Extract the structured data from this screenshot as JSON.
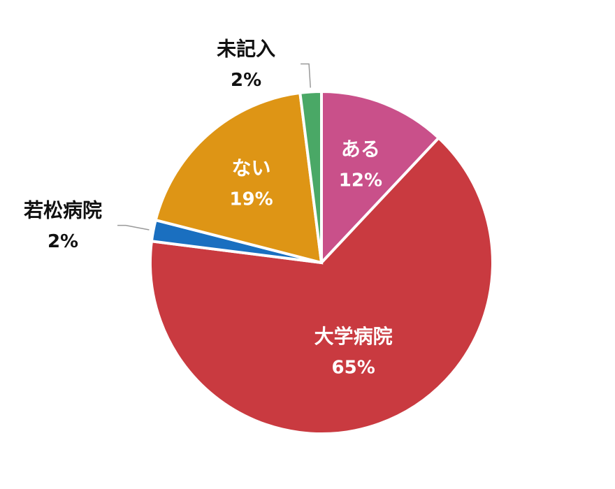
{
  "chart_data": {
    "type": "pie",
    "categories": [
      "ある",
      "大学病院",
      "若松病院",
      "ない",
      "未記入"
    ],
    "values": [
      12,
      65,
      2,
      19,
      2
    ],
    "value_labels": [
      "12%",
      "65%",
      "2%",
      "19%",
      "2%"
    ],
    "colors": [
      "#c9508a",
      "#c93a40",
      "#1a6fc0",
      "#de9515",
      "#4aa866"
    ]
  }
}
